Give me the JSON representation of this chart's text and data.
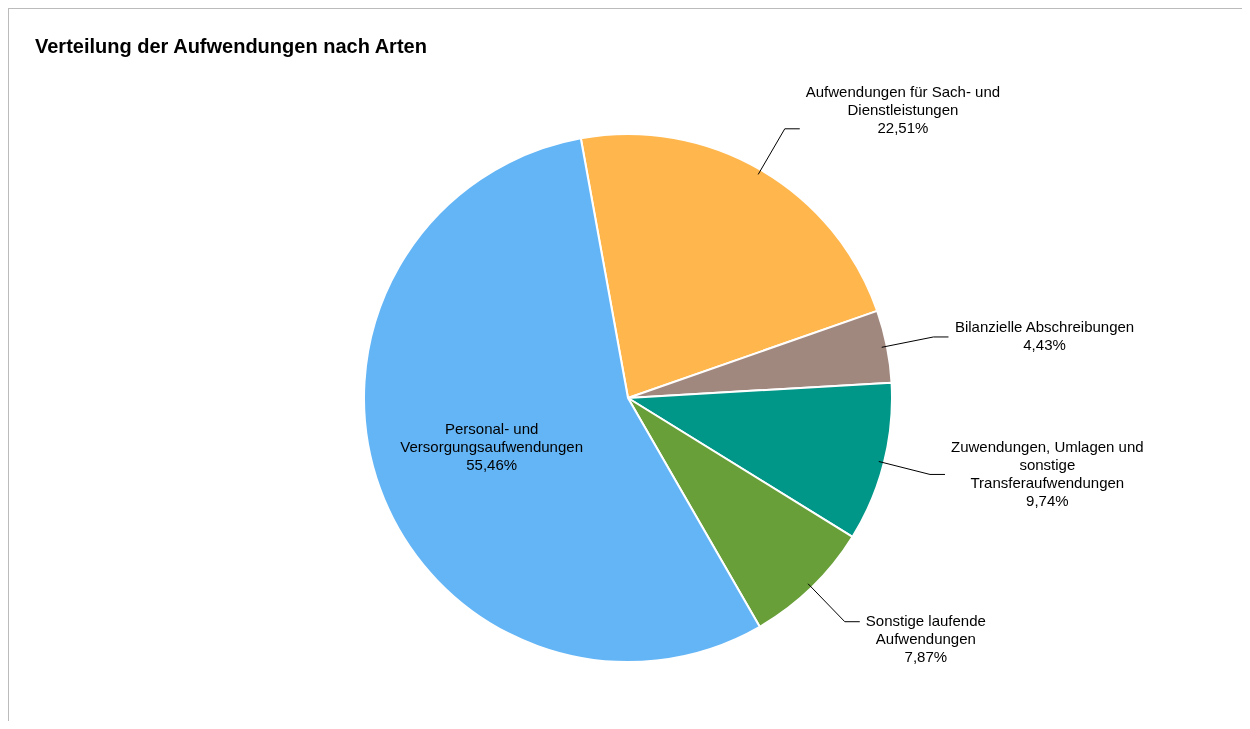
{
  "chart_data": {
    "type": "pie",
    "title": "Verteilung der Aufwendungen nach Arten",
    "categories": [
      "Aufwendungen für Sach- und Dienstleistungen",
      "Bilanzielle Abschreibungen",
      "Zuwendungen, Umlagen und sonstige Transferaufwendungen",
      "Sonstige laufende Aufwendungen",
      "Personal- und Versorgungsaufwendungen"
    ],
    "values": [
      22.51,
      4.43,
      9.74,
      7.87,
      55.46
    ],
    "value_labels": [
      "22,51%",
      "4,43%",
      "9,74%",
      "7,87%",
      "55,46%"
    ],
    "colors": [
      "#ffb74d",
      "#a1887f",
      "#009688",
      "#689f38",
      "#64b5f6"
    ],
    "legend": false
  }
}
